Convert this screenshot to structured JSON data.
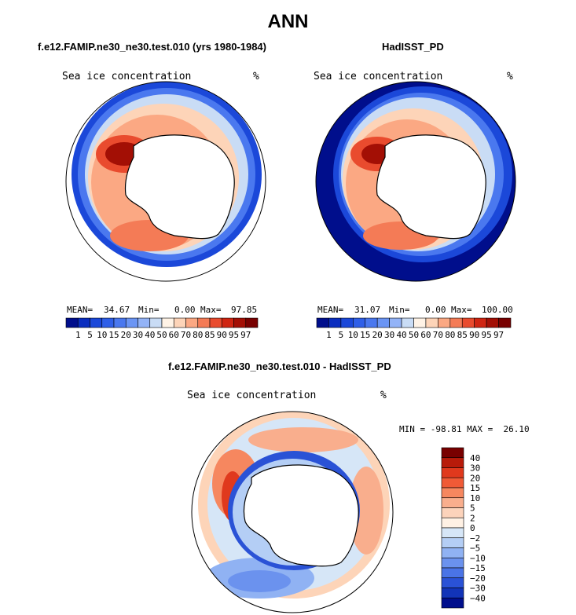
{
  "figure_title": "ANN",
  "panels": {
    "left": {
      "title": "f.e12.FAMIP.ne30_ne30.test.010 (yrs 1980-1984)",
      "field_label": "Sea ice concentration",
      "units": "%",
      "mean_label": "MEAN=",
      "mean": "34.67",
      "min_label": "Min=",
      "min": "0.00",
      "max_label": "Max=",
      "max": "97.85"
    },
    "right": {
      "title": "HadISST_PD",
      "field_label": "Sea ice concentration",
      "units": "%",
      "mean_label": "MEAN=",
      "mean": "31.07",
      "min_label": "Min=",
      "min": "0.00",
      "max_label": "Max=",
      "max": "100.00"
    },
    "diff": {
      "title": "f.e12.FAMIP.ne30_ne30.test.010 - HadISST_PD",
      "field_label": "Sea ice concentration",
      "units": "%",
      "minmax_text": "MIN = -98.81 MAX =  26.10"
    }
  },
  "colorbars": {
    "concentration": {
      "tick_labels": [
        "1",
        "5",
        "10",
        "15",
        "20",
        "30",
        "40",
        "50",
        "60",
        "70",
        "80",
        "85",
        "90",
        "95",
        "97"
      ],
      "colors": [
        "#000e8c",
        "#0a2dbf",
        "#1b48d9",
        "#2f5fe8",
        "#4a78ef",
        "#6b95f4",
        "#93b3f7",
        "#c9dcf5",
        "#fff3e6",
        "#fdd4b8",
        "#fba883",
        "#f47b56",
        "#e94b2e",
        "#cf2512",
        "#a30f05",
        "#780000"
      ]
    },
    "difference": {
      "tick_labels": [
        "40",
        "30",
        "20",
        "15",
        "10",
        "5",
        "2",
        "0",
        "−2",
        "−5",
        "−10",
        "−15",
        "−20",
        "−30",
        "−40"
      ],
      "colors": [
        "#780000",
        "#b81b0a",
        "#e0391d",
        "#f05a36",
        "#f6875f",
        "#f9ae8d",
        "#fcd3bb",
        "#fff1e4",
        "#d6e6f7",
        "#b4cef5",
        "#90b2f3",
        "#6b92ee",
        "#4a74e6",
        "#2a52d6",
        "#1234b8",
        "#000e8c"
      ]
    }
  }
}
